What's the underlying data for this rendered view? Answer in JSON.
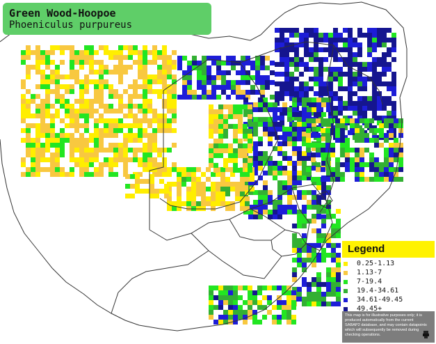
{
  "title": {
    "common_name": "Green Wood-Hoopoe",
    "scientific_name": "Phoeniculus purpureus"
  },
  "legend": {
    "heading": "Legend",
    "items": [
      {
        "label": "0.25-1.13",
        "color": "#ffee00"
      },
      {
        "label": "1.13-7",
        "color": "#f8c840"
      },
      {
        "label": "7-19.4",
        "color": "#22e622"
      },
      {
        "label": "19.4-34.61",
        "color": "#33b033"
      },
      {
        "label": "34.61-49.45",
        "color": "#1d1dd8"
      },
      {
        "label": "49.45+",
        "color": "#15158f"
      }
    ],
    "disclaimer": "This map is for illustrative purposes only; it is produced automatically from the current SABAP2 database, and may contain datapoints which will subsequently be removed during checking operations.",
    "disclaimer_icon": "printer-icon"
  },
  "colors": {
    "title_bg": "#5fce68",
    "legend_header_bg": "#fff200",
    "disclaimer_bg": "#7d7d7d",
    "border": "#333333"
  }
}
